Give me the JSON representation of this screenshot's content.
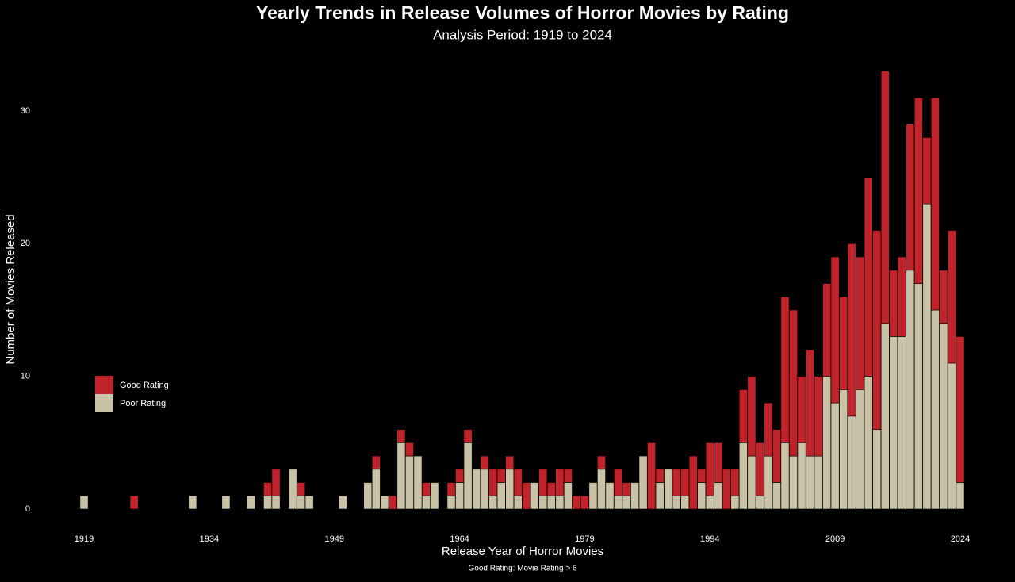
{
  "chart_data": {
    "type": "stacked-bar",
    "title": "Yearly Trends in Release Volumes of Horror Movies by Rating",
    "subtitle": "Analysis Period: 1919 to 2024",
    "x_label": "Release Year of Horror Movies",
    "y_label": "Number of Movies Released",
    "caption": "Good Rating: Movie Rating > 6",
    "x": [
      1919,
      1920,
      1921,
      1922,
      1923,
      1924,
      1925,
      1926,
      1927,
      1928,
      1929,
      1930,
      1931,
      1932,
      1933,
      1934,
      1935,
      1936,
      1937,
      1938,
      1939,
      1940,
      1941,
      1942,
      1943,
      1944,
      1945,
      1946,
      1947,
      1948,
      1949,
      1950,
      1951,
      1952,
      1953,
      1954,
      1955,
      1956,
      1957,
      1958,
      1959,
      1960,
      1961,
      1962,
      1963,
      1964,
      1965,
      1966,
      1967,
      1968,
      1969,
      1970,
      1971,
      1972,
      1973,
      1974,
      1975,
      1976,
      1977,
      1978,
      1979,
      1980,
      1981,
      1982,
      1983,
      1984,
      1985,
      1986,
      1987,
      1988,
      1989,
      1990,
      1991,
      1992,
      1993,
      1994,
      1995,
      1996,
      1997,
      1998,
      1999,
      2000,
      2001,
      2002,
      2003,
      2004,
      2005,
      2006,
      2007,
      2008,
      2009,
      2010,
      2011,
      2012,
      2013,
      2014,
      2015,
      2016,
      2017,
      2018,
      2019,
      2020,
      2021,
      2022,
      2023,
      2024
    ],
    "series": [
      {
        "name": "Good Rating",
        "color": "#c1232b",
        "values": [
          0,
          0,
          0,
          0,
          0,
          0,
          1,
          0,
          0,
          0,
          0,
          0,
          0,
          0,
          0,
          0,
          0,
          0,
          0,
          0,
          0,
          0,
          1,
          2,
          0,
          0,
          1,
          0,
          0,
          0,
          0,
          0,
          0,
          0,
          0,
          1,
          0,
          1,
          1,
          1,
          0,
          1,
          0,
          0,
          1,
          1,
          1,
          0,
          1,
          2,
          1,
          1,
          2,
          2,
          0,
          2,
          1,
          2,
          1,
          1,
          1,
          0,
          1,
          0,
          2,
          1,
          0,
          0,
          5,
          1,
          0,
          2,
          2,
          4,
          1,
          4,
          3,
          3,
          2,
          4,
          6,
          4,
          4,
          4,
          11,
          11,
          5,
          8,
          6,
          7,
          11,
          7,
          13,
          10,
          15,
          15,
          19,
          5,
          6,
          11,
          14,
          5,
          16,
          4,
          10,
          11
        ]
      },
      {
        "name": "Poor Rating",
        "color": "#c9c2a6",
        "values": [
          1,
          0,
          0,
          0,
          0,
          0,
          0,
          0,
          0,
          0,
          0,
          0,
          0,
          1,
          0,
          0,
          0,
          1,
          0,
          0,
          1,
          0,
          1,
          1,
          0,
          3,
          1,
          1,
          0,
          0,
          0,
          1,
          0,
          0,
          2,
          3,
          1,
          0,
          5,
          4,
          4,
          1,
          2,
          0,
          1,
          2,
          5,
          3,
          3,
          1,
          2,
          3,
          1,
          0,
          2,
          1,
          1,
          1,
          2,
          0,
          0,
          2,
          3,
          2,
          1,
          1,
          2,
          4,
          0,
          2,
          3,
          1,
          1,
          0,
          2,
          1,
          2,
          0,
          1,
          5,
          4,
          1,
          4,
          2,
          5,
          4,
          5,
          4,
          4,
          10,
          8,
          9,
          7,
          9,
          10,
          6,
          14,
          13,
          13,
          18,
          17,
          23,
          15,
          14,
          11,
          2
        ]
      }
    ],
    "xlim": [
      1918,
      2025
    ],
    "xticks": [
      1919,
      1934,
      1949,
      1964,
      1979,
      1994,
      2009,
      2024
    ],
    "ylim": [
      0,
      33
    ],
    "yticks": [
      0,
      10,
      20,
      30
    ],
    "grid": false,
    "legend": "left"
  }
}
